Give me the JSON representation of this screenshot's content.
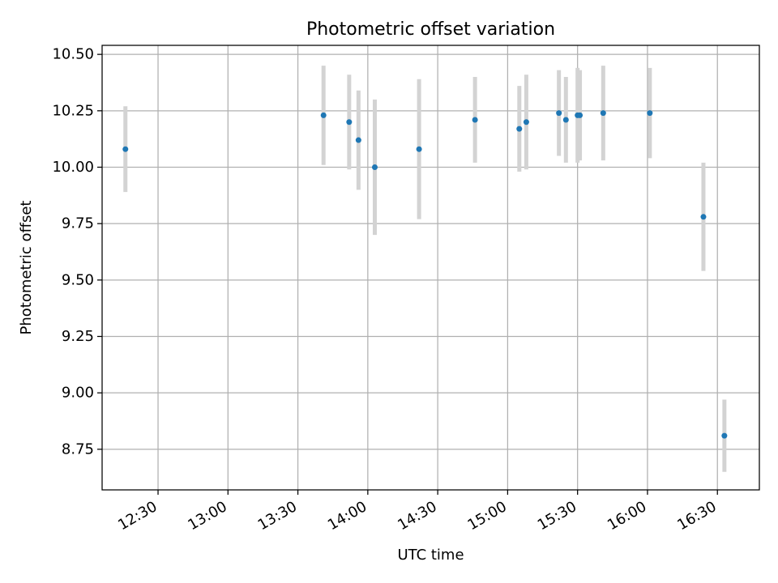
{
  "chart_data": {
    "type": "scatter",
    "title": "Photometric offset variation",
    "xlabel": "UTC time",
    "ylabel": "Photometric offset",
    "x_is_time": true,
    "xlim": [
      "12:06",
      "16:48"
    ],
    "ylim": [
      8.57,
      10.54
    ],
    "grid": true,
    "x_ticks": [
      "12:30",
      "13:00",
      "13:30",
      "14:00",
      "14:30",
      "15:00",
      "15:30",
      "16:00",
      "16:30"
    ],
    "y_ticks": [
      "8.75",
      "9.00",
      "9.25",
      "9.50",
      "9.75",
      "10.00",
      "10.25",
      "10.50"
    ],
    "colors": {
      "point": "#1f77b4",
      "errorbar": "#d3d3d3",
      "grid": "#b0b0b0"
    },
    "series": [
      {
        "points": [
          {
            "x": "12:16",
            "y": 10.08,
            "err": 0.19
          },
          {
            "x": "13:41",
            "y": 10.23,
            "err": 0.22
          },
          {
            "x": "13:52",
            "y": 10.2,
            "err": 0.21
          },
          {
            "x": "13:56",
            "y": 10.12,
            "err": 0.22
          },
          {
            "x": "14:03",
            "y": 10.0,
            "err": 0.3
          },
          {
            "x": "14:22",
            "y": 10.08,
            "err": 0.31
          },
          {
            "x": "14:46",
            "y": 10.21,
            "err": 0.19
          },
          {
            "x": "15:05",
            "y": 10.17,
            "err": 0.19
          },
          {
            "x": "15:08",
            "y": 10.2,
            "err": 0.21
          },
          {
            "x": "15:22",
            "y": 10.24,
            "err": 0.19
          },
          {
            "x": "15:25",
            "y": 10.21,
            "err": 0.19
          },
          {
            "x": "15:30",
            "y": 10.23,
            "err": 0.21
          },
          {
            "x": "15:31",
            "y": 10.23,
            "err": 0.2
          },
          {
            "x": "15:41",
            "y": 10.24,
            "err": 0.21
          },
          {
            "x": "16:01",
            "y": 10.24,
            "err": 0.2
          },
          {
            "x": "16:24",
            "y": 9.78,
            "err": 0.24
          },
          {
            "x": "16:33",
            "y": 8.81,
            "err": 0.16
          }
        ]
      }
    ]
  }
}
